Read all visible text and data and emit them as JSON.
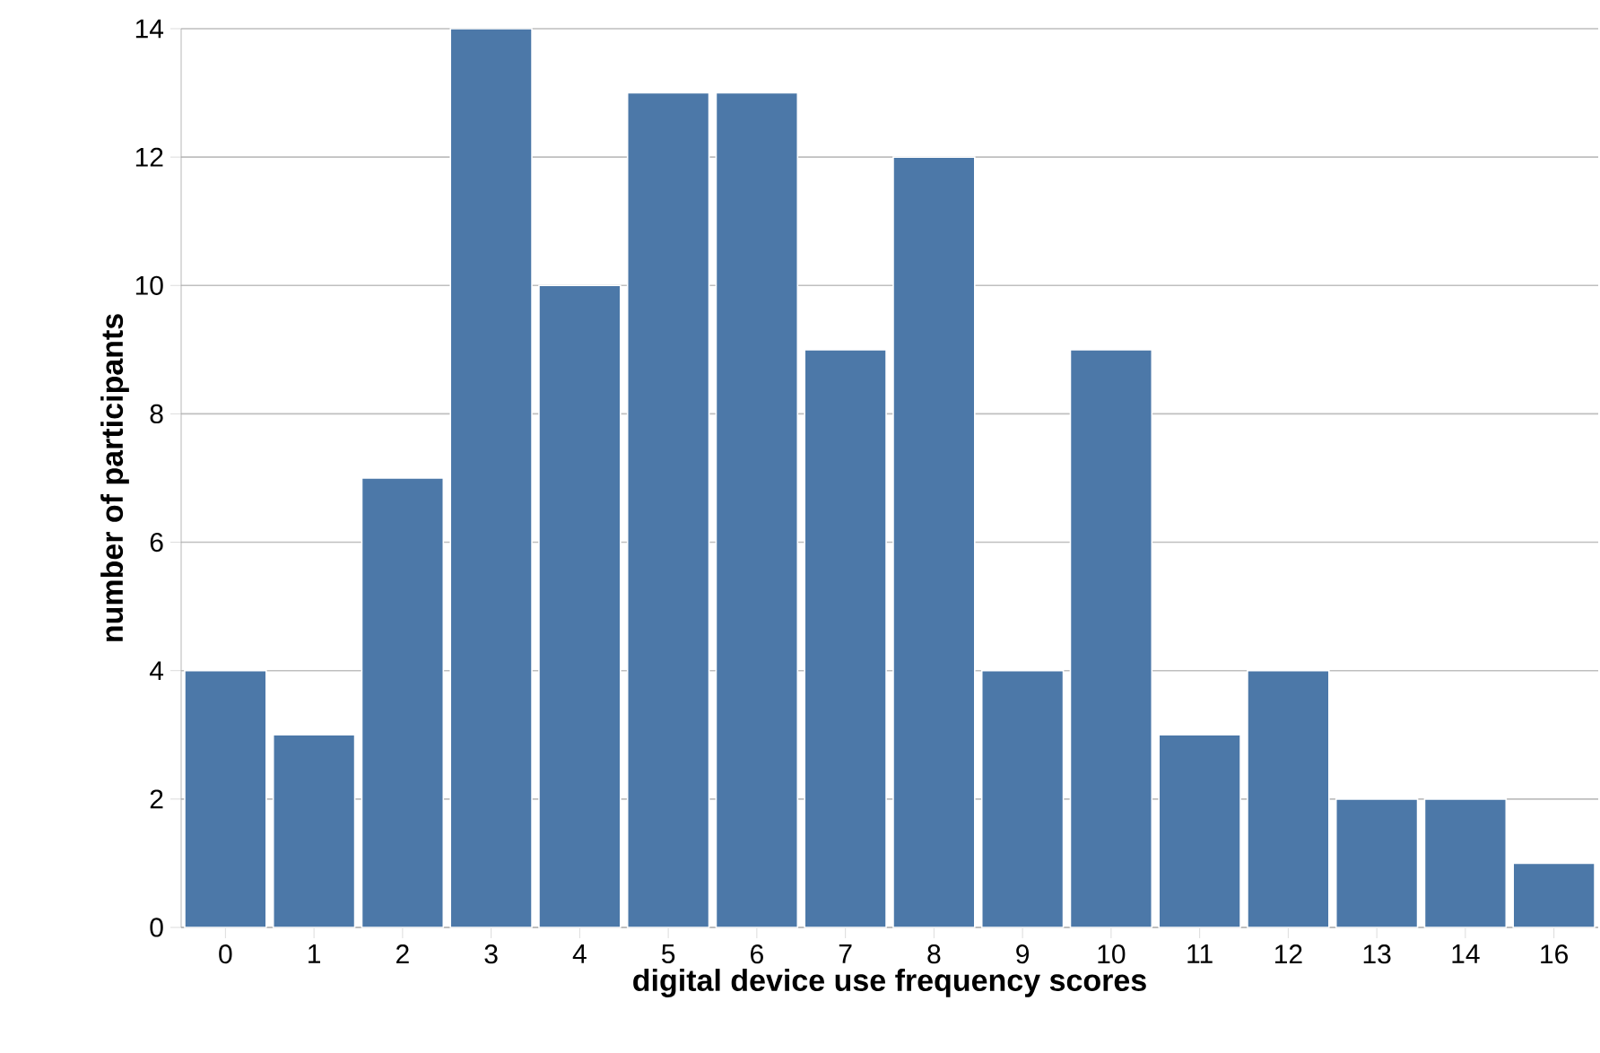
{
  "chart_data": {
    "type": "bar",
    "xlabel": "digital device use frequency scores",
    "ylabel": "number of participants",
    "categories": [
      "0",
      "1",
      "2",
      "3",
      "4",
      "5",
      "6",
      "7",
      "8",
      "9",
      "10",
      "11",
      "12",
      "13",
      "14",
      "16"
    ],
    "values": [
      4,
      3,
      7,
      14,
      10,
      13,
      13,
      9,
      12,
      4,
      9,
      3,
      4,
      2,
      2,
      1
    ],
    "color": "#4c78a8",
    "ylim": [
      0,
      14
    ],
    "yticks": [
      0,
      2,
      4,
      6,
      8,
      10,
      12,
      14
    ],
    "grid": "y"
  }
}
